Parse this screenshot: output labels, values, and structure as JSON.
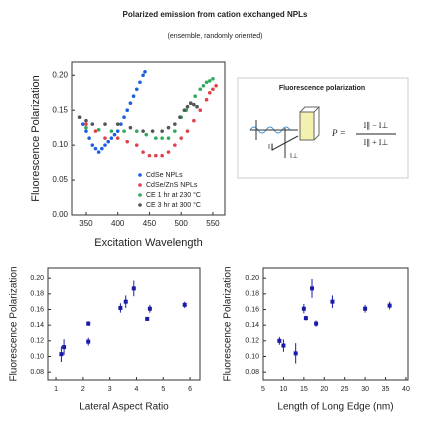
{
  "title": "Polarized emission from cation exchanged NPLs",
  "subtitle": "(ensemble, randomly oriented)",
  "diagram": {
    "title": "Fluorescence polarization",
    "lhs": "P =",
    "numerator": "I∥ − I⊥",
    "denominator": "I∥ + I⊥",
    "label_parallel": "I∥",
    "label_perp": "I⊥"
  },
  "chart_data": [
    {
      "type": "scatter",
      "x_label": "Excitation Wavelength",
      "y_label": "Fluorescence Polarization",
      "xlim": [
        328,
        569
      ],
      "ylim": [
        0,
        0.219
      ],
      "xticks": [
        350,
        400,
        450,
        500,
        550
      ],
      "yticks": [
        {
          "value": 0,
          "label": "0.00"
        },
        {
          "value": 0.05,
          "label": "0.05"
        },
        {
          "value": 0.1,
          "label": "0.10"
        },
        {
          "value": 0.15,
          "label": "0.15"
        },
        {
          "value": 0.2,
          "label": "0.20"
        }
      ],
      "legend": "lower right",
      "series": [
        {
          "name": "CdSe NPLs",
          "color": "#1a5fe0",
          "x": [
            345,
            350,
            355,
            360,
            365,
            370,
            375,
            380,
            385,
            390,
            395,
            400,
            405,
            410,
            415,
            420,
            425,
            430,
            435,
            440,
            443
          ],
          "values": [
            0.13,
            0.12,
            0.11,
            0.1,
            0.095,
            0.09,
            0.095,
            0.1,
            0.105,
            0.11,
            0.115,
            0.12,
            0.13,
            0.14,
            0.15,
            0.16,
            0.17,
            0.18,
            0.19,
            0.2,
            0.205
          ]
        },
        {
          "name": "CdSe/ZnS NPLs",
          "color": "#e0404a",
          "x": [
            350,
            365,
            380,
            400,
            415,
            430,
            440,
            450,
            460,
            470,
            480,
            490,
            500,
            510,
            520,
            530,
            540,
            545,
            550,
            555
          ],
          "values": [
            0.13,
            0.12,
            0.11,
            0.11,
            0.105,
            0.1,
            0.09,
            0.085,
            0.085,
            0.085,
            0.09,
            0.1,
            0.11,
            0.12,
            0.135,
            0.15,
            0.165,
            0.175,
            0.18,
            0.185
          ]
        },
        {
          "name": "CE 1 hr at 230 °C",
          "color": "#2eaa5a",
          "x": [
            350,
            370,
            390,
            410,
            430,
            445,
            460,
            470,
            480,
            490,
            500,
            508,
            515,
            522,
            530,
            535,
            540,
            545,
            550
          ],
          "values": [
            0.125,
            0.122,
            0.12,
            0.12,
            0.12,
            0.115,
            0.11,
            0.11,
            0.11,
            0.12,
            0.14,
            0.15,
            0.16,
            0.17,
            0.18,
            0.185,
            0.19,
            0.192,
            0.195
          ]
        },
        {
          "name": "CE 3 hr at 300 °C",
          "color": "#555555",
          "x": [
            340,
            350,
            360,
            380,
            400,
            420,
            440,
            455,
            470,
            480,
            490,
            498,
            505,
            510,
            515,
            520,
            525
          ],
          "values": [
            0.14,
            0.135,
            0.13,
            0.13,
            0.13,
            0.125,
            0.12,
            0.12,
            0.12,
            0.125,
            0.13,
            0.14,
            0.15,
            0.155,
            0.16,
            0.158,
            0.155
          ]
        }
      ]
    },
    {
      "type": "errorbar",
      "x_label": "Lateral Aspect Ratio",
      "y_label": "Fluorescence Polarization",
      "xlim": [
        0.7,
        6.37
      ],
      "ylim": [
        0.07,
        0.213
      ],
      "xticks": [
        1,
        2,
        3,
        4,
        5,
        6
      ],
      "yticks": [
        {
          "value": 0.08,
          "label": "0.08"
        },
        {
          "value": 0.1,
          "label": "0.10"
        },
        {
          "value": 0.12,
          "label": "0.12"
        },
        {
          "value": 0.14,
          "label": "0.14"
        },
        {
          "value": 0.16,
          "label": "0.16"
        },
        {
          "value": 0.18,
          "label": "0.18"
        },
        {
          "value": 0.2,
          "label": "0.20"
        }
      ],
      "series": [
        {
          "color": "#1a1aa8",
          "x": [
            1.2,
            1.3,
            2.2,
            2.2,
            3.4,
            3.6,
            3.9,
            4.4,
            4.5,
            5.8
          ],
          "values": [
            0.103,
            0.112,
            0.142,
            0.119,
            0.162,
            0.17,
            0.187,
            0.148,
            0.161,
            0.166
          ],
          "errors": [
            0.01,
            0.01,
            0.003,
            0.005,
            0.006,
            0.008,
            0.01,
            0.002,
            0.005,
            0.004
          ]
        }
      ]
    },
    {
      "type": "errorbar",
      "x_label": "Length of Long Edge (nm)",
      "y_label": "Fluorescence Polarization",
      "xlim": [
        5,
        40.5
      ],
      "ylim": [
        0.07,
        0.213
      ],
      "xticks": [
        5,
        10,
        15,
        20,
        25,
        30,
        35,
        40
      ],
      "yticks": [
        {
          "value": 0.08,
          "label": "0.08"
        },
        {
          "value": 0.1,
          "label": "0.10"
        },
        {
          "value": 0.12,
          "label": "0.12"
        },
        {
          "value": 0.14,
          "label": "0.14"
        },
        {
          "value": 0.16,
          "label": "0.16"
        },
        {
          "value": 0.18,
          "label": "0.18"
        },
        {
          "value": 0.2,
          "label": "0.20"
        }
      ],
      "series": [
        {
          "color": "#1a1aa8",
          "x": [
            9,
            10,
            13,
            15,
            15.5,
            17,
            18,
            22,
            30,
            36
          ],
          "values": [
            0.12,
            0.114,
            0.104,
            0.161,
            0.149,
            0.187,
            0.142,
            0.17,
            0.161,
            0.165
          ],
          "errors": [
            0.005,
            0.008,
            0.013,
            0.006,
            0.003,
            0.012,
            0.004,
            0.008,
            0.005,
            0.005
          ]
        }
      ]
    }
  ]
}
